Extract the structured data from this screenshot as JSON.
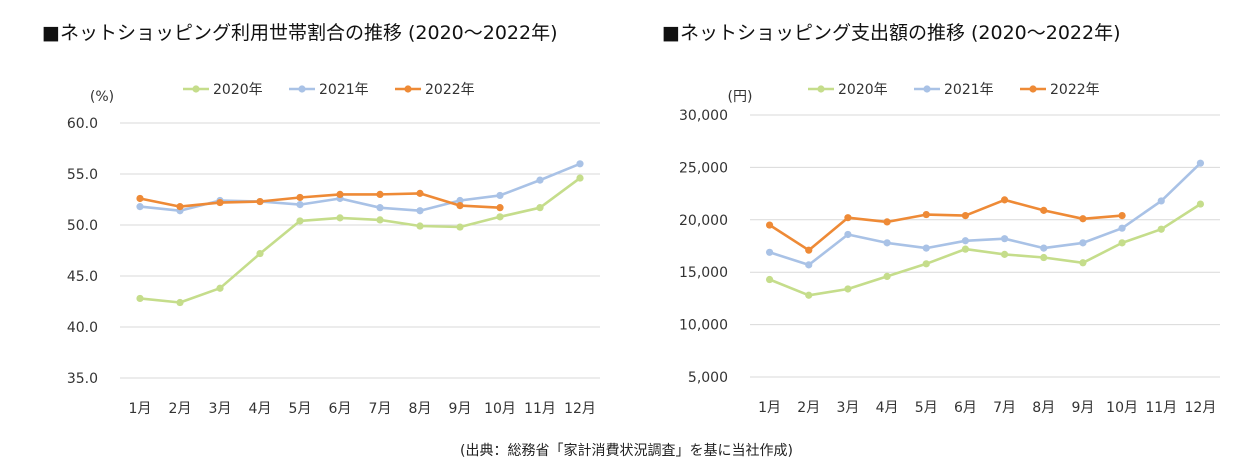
{
  "source_note": "(出典：総務省「家計消費状況調査」を基に当社作成)",
  "chart_data": [
    {
      "type": "line",
      "title": "■ネットショッピング利用世帯割合の推移 (2020～2022年)",
      "unit": "(%)",
      "categories": [
        "1月",
        "2月",
        "3月",
        "4月",
        "5月",
        "6月",
        "7月",
        "8月",
        "9月",
        "10月",
        "11月",
        "12月"
      ],
      "ylim": [
        35.0,
        60.0
      ],
      "yticks": [
        "35.0",
        "40.0",
        "45.0",
        "50.0",
        "55.0",
        "60.0"
      ],
      "grid": true,
      "legend_position": "top",
      "series": [
        {
          "name": "2020年",
          "color": "#c5dd8b",
          "values": [
            42.8,
            42.4,
            43.8,
            47.2,
            50.4,
            50.7,
            50.5,
            49.9,
            49.8,
            50.8,
            51.7,
            54.6
          ]
        },
        {
          "name": "2021年",
          "color": "#a9c2e6",
          "values": [
            51.8,
            51.4,
            52.4,
            52.3,
            52.0,
            52.6,
            51.7,
            51.4,
            52.4,
            52.9,
            54.4,
            56.0
          ]
        },
        {
          "name": "2022年",
          "color": "#ee8a36",
          "values": [
            52.6,
            51.8,
            52.2,
            52.3,
            52.7,
            53.0,
            53.0,
            53.1,
            51.9,
            51.7,
            null,
            null
          ]
        }
      ]
    },
    {
      "type": "line",
      "title": "■ネットショッピング支出額の推移 (2020～2022年)",
      "unit": "(円)",
      "categories": [
        "1月",
        "2月",
        "3月",
        "4月",
        "5月",
        "6月",
        "7月",
        "8月",
        "9月",
        "10月",
        "11月",
        "12月"
      ],
      "ylim": [
        5000,
        30000
      ],
      "yticks": [
        "5,000",
        "10,000",
        "15,000",
        "20,000",
        "25,000",
        "30,000"
      ],
      "grid": true,
      "legend_position": "top",
      "series": [
        {
          "name": "2020年",
          "color": "#c5dd8b",
          "values": [
            14300,
            12800,
            13400,
            14600,
            15800,
            17200,
            16700,
            16400,
            15900,
            17800,
            19100,
            21500
          ]
        },
        {
          "name": "2021年",
          "color": "#a9c2e6",
          "values": [
            16900,
            15700,
            18600,
            17800,
            17300,
            18000,
            18200,
            17300,
            17800,
            19200,
            21800,
            25400
          ]
        },
        {
          "name": "2022年",
          "color": "#ee8a36",
          "values": [
            19500,
            17100,
            20200,
            19800,
            20500,
            20400,
            21900,
            20900,
            20100,
            20400,
            null,
            null
          ]
        }
      ]
    }
  ]
}
